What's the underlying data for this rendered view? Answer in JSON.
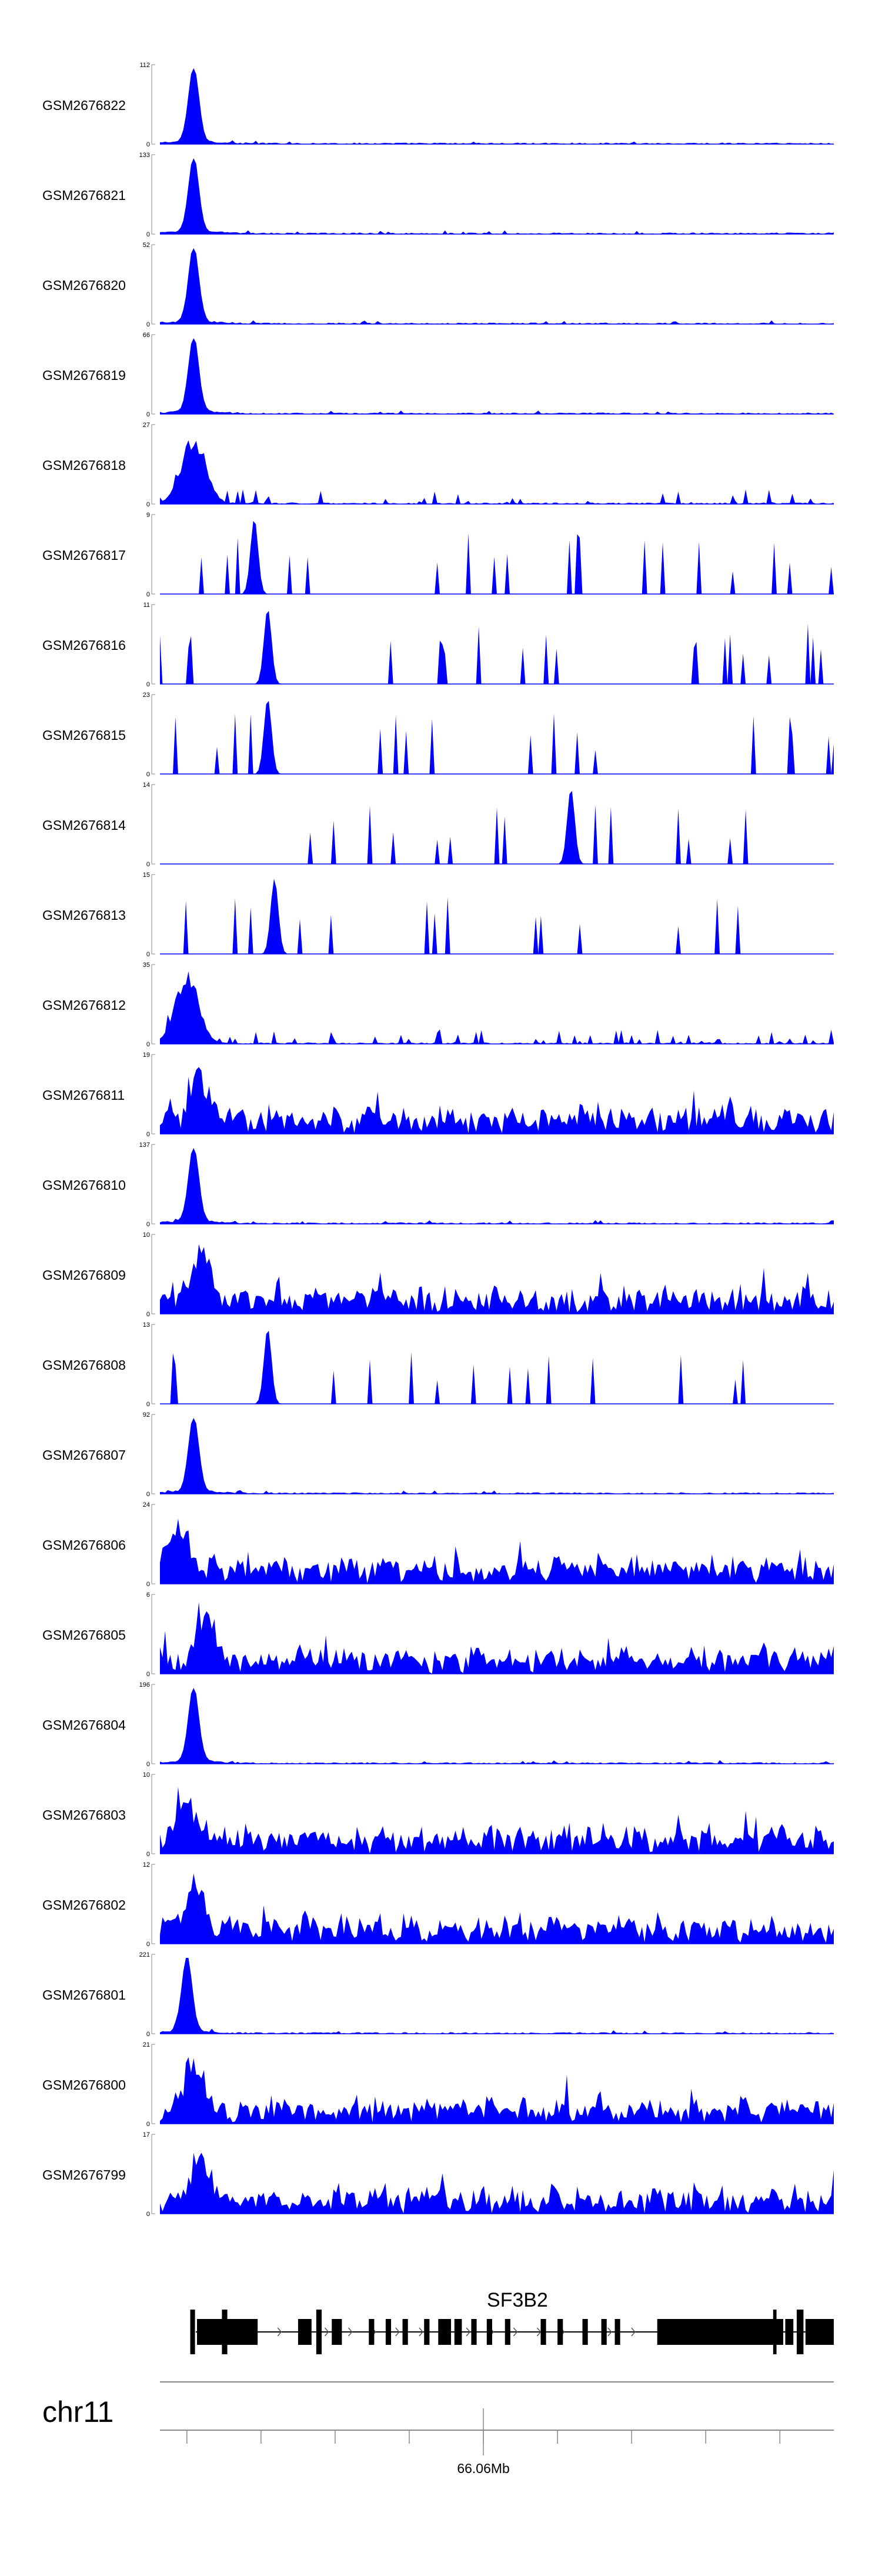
{
  "chart_data": {
    "type": "area",
    "title": "",
    "fill_color": "#0000ff",
    "gene_color": "#000000",
    "axis_color": "#888888",
    "tracks": [
      {
        "name": "GSM2676822",
        "ymax": 112,
        "ymin": 0,
        "profile": "sharp",
        "peak": 0.05
      },
      {
        "name": "GSM2676821",
        "ymax": 133,
        "ymin": 0,
        "profile": "sharp",
        "peak": 0.05
      },
      {
        "name": "GSM2676820",
        "ymax": 52,
        "ymin": 0,
        "profile": "sharp",
        "peak": 0.05
      },
      {
        "name": "GSM2676819",
        "ymax": 66,
        "ymin": 0,
        "profile": "sharp",
        "peak": 0.05
      },
      {
        "name": "GSM2676818",
        "ymax": 27,
        "ymin": 0,
        "profile": "broadpeak",
        "peak": 0.05
      },
      {
        "name": "GSM2676817",
        "ymax": 9,
        "ymin": 0,
        "profile": "sparse",
        "peak": 0.14
      },
      {
        "name": "GSM2676816",
        "ymax": 11,
        "ymin": 0,
        "profile": "sparse",
        "peak": 0.16
      },
      {
        "name": "GSM2676815",
        "ymax": 23,
        "ymin": 0,
        "profile": "sparse",
        "peak": 0.16
      },
      {
        "name": "GSM2676814",
        "ymax": 14,
        "ymin": 0,
        "profile": "sparse",
        "peak": 0.61
      },
      {
        "name": "GSM2676813",
        "ymax": 15,
        "ymin": 0,
        "profile": "sparse",
        "peak": 0.17
      },
      {
        "name": "GSM2676812",
        "ymax": 35,
        "ymin": 0,
        "profile": "broadpeak",
        "peak": 0.04
      },
      {
        "name": "GSM2676811",
        "ymax": 19,
        "ymin": 0,
        "profile": "noisy",
        "peak": 0.06
      },
      {
        "name": "GSM2676810",
        "ymax": 137,
        "ymin": 0,
        "profile": "sharp",
        "peak": 0.05
      },
      {
        "name": "GSM2676809",
        "ymax": 10,
        "ymin": 0,
        "profile": "noisy",
        "peak": 0.06
      },
      {
        "name": "GSM2676808",
        "ymax": 13,
        "ymin": 0,
        "profile": "sparse",
        "peak": 0.16
      },
      {
        "name": "GSM2676807",
        "ymax": 92,
        "ymin": 0,
        "profile": "sharp",
        "peak": 0.05
      },
      {
        "name": "GSM2676806",
        "ymax": 24,
        "ymin": 0,
        "profile": "noisy",
        "peak": 0.03
      },
      {
        "name": "GSM2676805",
        "ymax": 6,
        "ymin": 0,
        "profile": "noisy",
        "peak": 0.07
      },
      {
        "name": "GSM2676804",
        "ymax": 196,
        "ymin": 0,
        "profile": "sharp",
        "peak": 0.05
      },
      {
        "name": "GSM2676803",
        "ymax": 10,
        "ymin": 0,
        "profile": "noisy",
        "peak": 0.04
      },
      {
        "name": "GSM2676802",
        "ymax": 12,
        "ymin": 0,
        "profile": "noisy",
        "peak": 0.05
      },
      {
        "name": "GSM2676801",
        "ymax": 221,
        "ymin": 0,
        "profile": "sharp",
        "peak": 0.04
      },
      {
        "name": "GSM2676800",
        "ymax": 21,
        "ymin": 0,
        "profile": "noisy",
        "peak": 0.05
      },
      {
        "name": "GSM2676799",
        "ymax": 17,
        "ymin": 0,
        "profile": "noisy",
        "peak": 0.06
      }
    ],
    "gene": {
      "name": "SF3B2",
      "strand": "+",
      "exons": [
        {
          "start": 0.055,
          "end": 0.145
        },
        {
          "start": 0.205,
          "end": 0.225
        },
        {
          "start": 0.255,
          "end": 0.27
        },
        {
          "start": 0.31,
          "end": 0.318
        },
        {
          "start": 0.335,
          "end": 0.343
        },
        {
          "start": 0.36,
          "end": 0.368
        },
        {
          "start": 0.392,
          "end": 0.4
        },
        {
          "start": 0.413,
          "end": 0.432
        },
        {
          "start": 0.437,
          "end": 0.448
        },
        {
          "start": 0.462,
          "end": 0.47
        },
        {
          "start": 0.485,
          "end": 0.493
        },
        {
          "start": 0.512,
          "end": 0.52
        },
        {
          "start": 0.565,
          "end": 0.573
        },
        {
          "start": 0.59,
          "end": 0.598
        },
        {
          "start": 0.627,
          "end": 0.635
        },
        {
          "start": 0.655,
          "end": 0.663
        },
        {
          "start": 0.675,
          "end": 0.683
        },
        {
          "start": 0.738,
          "end": 0.925
        },
        {
          "start": 0.928,
          "end": 0.94
        },
        {
          "start": 0.958,
          "end": 1.0
        }
      ],
      "thin_exons": [
        {
          "start": 0.045,
          "end": 0.052
        },
        {
          "start": 0.092,
          "end": 0.1
        },
        {
          "start": 0.232,
          "end": 0.24
        },
        {
          "start": 0.91,
          "end": 0.915
        },
        {
          "start": 0.945,
          "end": 0.955
        }
      ]
    },
    "chromosome": "chr11",
    "x_axis": {
      "tick_fractions": [
        0.04,
        0.15,
        0.26,
        0.37,
        0.48,
        0.59,
        0.7,
        0.81,
        0.92
      ],
      "labeled_tick_fraction": 0.48,
      "labeled_tick_text": "66.06Mb"
    }
  }
}
